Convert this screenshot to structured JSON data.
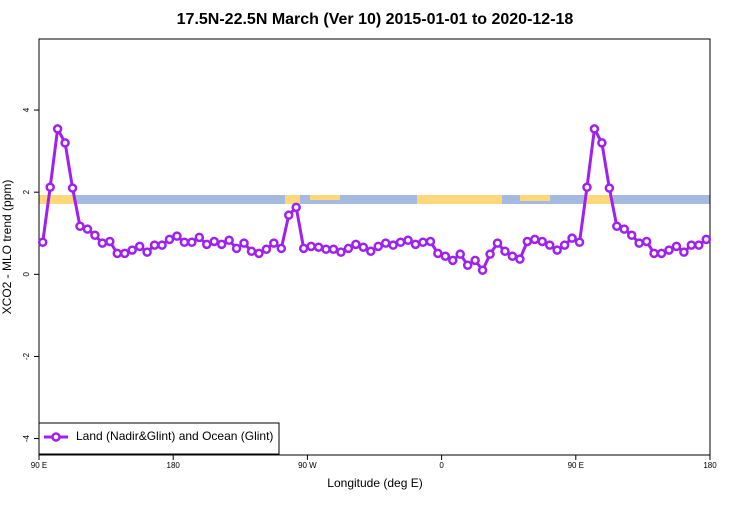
{
  "chart_data": {
    "type": "line",
    "title": "17.5N-22.5N March (Ver 10)   2015-01-01 to 2020-12-18",
    "xlabel": "Longitude (deg E)",
    "ylabel": "XCO2 - MLO trend (ppm)",
    "x": [
      92.5,
      97.5,
      102.5,
      107.5,
      112.5,
      117.5,
      122.5,
      127.5,
      132.5,
      137.5,
      142.5,
      147.5,
      152.5,
      157.5,
      162.5,
      167.5,
      172.5,
      177.5,
      182.5,
      187.5,
      192.5,
      197.5,
      202.5,
      207.5,
      212.5,
      217.5,
      222.5,
      227.5,
      232.5,
      237.5,
      242.5,
      247.5,
      252.5,
      257.5,
      262.5,
      267.5,
      272.5,
      277.5,
      282.5,
      287.5,
      292.5,
      297.5,
      302.5,
      307.5,
      312.5,
      317.5,
      322.5,
      327.5,
      332.5,
      337.5,
      342.5,
      347.5,
      352.5,
      357.5,
      362.5,
      367.5,
      372.5,
      377.5,
      382.5,
      387.5,
      392.5,
      397.5,
      402.5,
      407.5,
      412.5,
      417.5,
      422.5,
      427.5,
      432.5,
      437.5,
      442.5,
      447.5,
      452.5,
      457.5,
      462.5,
      467.5,
      472.5,
      477.5,
      482.5,
      487.5,
      492.5,
      497.5,
      502.5,
      507.5,
      512.5,
      517.5,
      522.5,
      527.5,
      532.5,
      537.5
    ],
    "series": [
      {
        "name": "Land (Nadir&Glint) and Ocean (Glint)",
        "color": "#a020f0",
        "values": [
          0.78,
          2.12,
          3.54,
          3.2,
          2.1,
          1.17,
          1.1,
          0.95,
          0.76,
          0.8,
          0.51,
          0.51,
          0.59,
          0.68,
          0.54,
          0.71,
          0.71,
          0.85,
          0.93,
          0.78,
          0.78,
          0.9,
          0.73,
          0.8,
          0.73,
          0.83,
          0.63,
          0.76,
          0.56,
          0.51,
          0.61,
          0.76,
          0.63,
          1.44,
          1.63,
          0.63,
          0.68,
          0.66,
          0.61,
          0.61,
          0.54,
          0.63,
          0.73,
          0.66,
          0.56,
          0.68,
          0.76,
          0.71,
          0.78,
          0.83,
          0.73,
          0.78,
          0.8,
          0.51,
          0.44,
          0.34,
          0.49,
          0.22,
          0.34,
          0.1,
          0.49,
          0.76,
          0.56,
          0.44,
          0.37,
          0.8,
          0.85,
          0.8,
          0.71,
          0.59,
          0.71,
          0.88,
          0.78,
          2.12,
          3.54,
          3.2,
          2.1,
          1.17,
          1.1,
          0.95,
          0.76,
          0.8,
          0.51,
          0.51,
          0.59,
          0.68,
          0.54,
          0.71,
          0.71,
          0.85
        ]
      }
    ],
    "xlim": [
      90,
      540
    ],
    "xticks": [
      {
        "value": 90,
        "label": "90 E"
      },
      180,
      {
        "value": 270,
        "label": "90 W"
      },
      {
        "value": 360,
        "label": "0"
      },
      {
        "value": 450,
        "label": "90 E"
      },
      {
        "value": 540,
        "label": "180"
      }
    ],
    "ylim": [
      -4.4,
      5.73
    ],
    "yticks": [
      -4,
      -2,
      0,
      2,
      4
    ],
    "legend": "bottom-left"
  }
}
